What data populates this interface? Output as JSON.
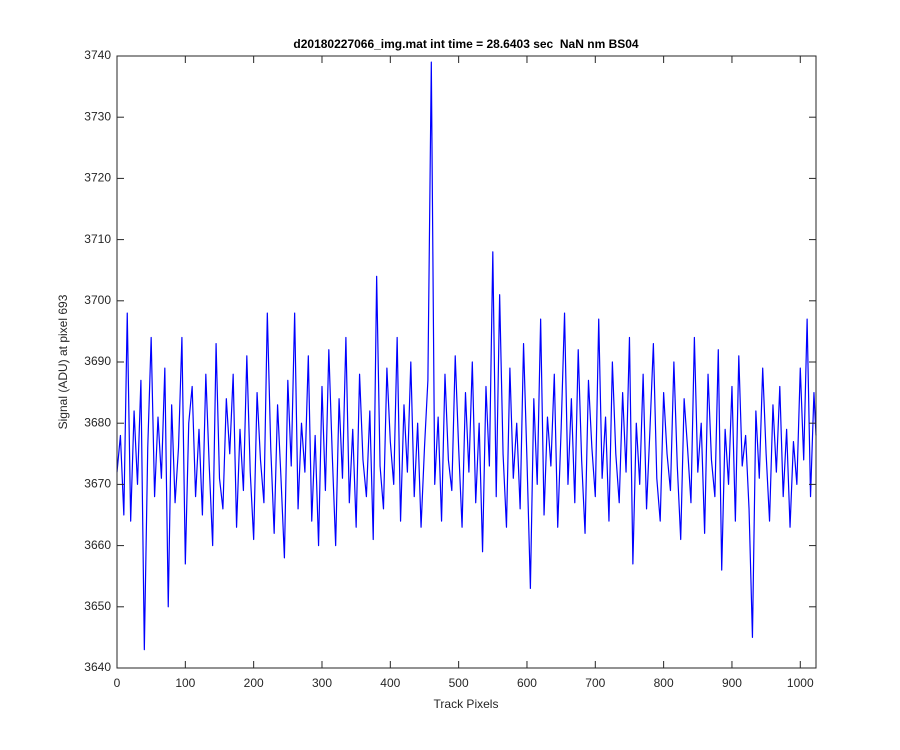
{
  "chart_data": {
    "type": "line",
    "title": "d20180227066_img.mat int time = 28.6403 sec  NaN nm BS04",
    "x_label": "Track Pixels",
    "y_label": "Signal (ADU) at pixel 693",
    "color": "#0000ff",
    "xlim": [
      0,
      1023
    ],
    "ylim": [
      3640,
      3740
    ],
    "xticks": [
      0,
      100,
      200,
      300,
      400,
      500,
      600,
      700,
      800,
      900,
      1000
    ],
    "yticks": [
      3640,
      3650,
      3660,
      3670,
      3680,
      3690,
      3700,
      3710,
      3720,
      3730,
      3740
    ],
    "grid": false,
    "x": [
      0,
      5,
      10,
      15,
      20,
      25,
      30,
      35,
      40,
      45,
      50,
      55,
      60,
      65,
      70,
      75,
      80,
      85,
      90,
      95,
      100,
      105,
      110,
      115,
      120,
      125,
      130,
      135,
      140,
      145,
      150,
      155,
      160,
      165,
      170,
      175,
      180,
      185,
      190,
      195,
      200,
      205,
      210,
      215,
      220,
      225,
      230,
      235,
      240,
      245,
      250,
      255,
      260,
      265,
      270,
      275,
      280,
      285,
      290,
      295,
      300,
      305,
      310,
      315,
      320,
      325,
      330,
      335,
      340,
      345,
      350,
      355,
      360,
      365,
      370,
      375,
      380,
      385,
      390,
      395,
      400,
      405,
      410,
      415,
      420,
      425,
      430,
      435,
      440,
      445,
      450,
      455,
      460,
      465,
      470,
      475,
      480,
      485,
      490,
      495,
      500,
      505,
      510,
      515,
      520,
      525,
      530,
      535,
      540,
      545,
      550,
      555,
      560,
      565,
      570,
      575,
      580,
      585,
      590,
      595,
      600,
      605,
      610,
      615,
      620,
      625,
      630,
      635,
      640,
      645,
      650,
      655,
      660,
      665,
      670,
      675,
      680,
      685,
      690,
      695,
      700,
      705,
      710,
      715,
      720,
      725,
      730,
      735,
      740,
      745,
      750,
      755,
      760,
      765,
      770,
      775,
      780,
      785,
      790,
      795,
      800,
      805,
      810,
      815,
      820,
      825,
      830,
      835,
      840,
      845,
      850,
      855,
      860,
      865,
      870,
      875,
      880,
      885,
      890,
      895,
      900,
      905,
      910,
      915,
      920,
      925,
      930,
      935,
      940,
      945,
      950,
      955,
      960,
      965,
      970,
      975,
      980,
      985,
      990,
      995,
      1000,
      1005,
      1010,
      1015,
      1020,
      1023
    ],
    "values": [
      3672,
      3678,
      3665,
      3698,
      3664,
      3682,
      3670,
      3687,
      3643,
      3676,
      3694,
      3668,
      3681,
      3671,
      3689,
      3650,
      3683,
      3667,
      3676,
      3694,
      3657,
      3680,
      3686,
      3668,
      3679,
      3665,
      3688,
      3673,
      3660,
      3693,
      3671,
      3666,
      3684,
      3675,
      3688,
      3663,
      3679,
      3669,
      3691,
      3672,
      3661,
      3685,
      3674,
      3667,
      3698,
      3676,
      3662,
      3683,
      3671,
      3658,
      3687,
      3673,
      3698,
      3666,
      3680,
      3672,
      3691,
      3664,
      3678,
      3660,
      3686,
      3669,
      3692,
      3675,
      3660,
      3684,
      3671,
      3694,
      3667,
      3679,
      3663,
      3688,
      3674,
      3668,
      3682,
      3661,
      3704,
      3673,
      3666,
      3689,
      3677,
      3670,
      3694,
      3664,
      3683,
      3672,
      3690,
      3668,
      3680,
      3663,
      3676,
      3687,
      3739,
      3670,
      3681,
      3664,
      3688,
      3674,
      3669,
      3691,
      3676,
      3663,
      3685,
      3672,
      3690,
      3667,
      3680,
      3659,
      3686,
      3673,
      3708,
      3668,
      3701,
      3675,
      3663,
      3689,
      3671,
      3680,
      3666,
      3693,
      3674,
      3653,
      3684,
      3670,
      3697,
      3665,
      3681,
      3673,
      3688,
      3663,
      3679,
      3698,
      3670,
      3684,
      3667,
      3692,
      3674,
      3662,
      3687,
      3676,
      3668,
      3697,
      3671,
      3681,
      3664,
      3690,
      3675,
      3667,
      3685,
      3672,
      3694,
      3657,
      3680,
      3670,
      3688,
      3666,
      3679,
      3693,
      3671,
      3664,
      3685,
      3675,
      3669,
      3690,
      3673,
      3661,
      3684,
      3676,
      3667,
      3694,
      3672,
      3680,
      3662,
      3688,
      3674,
      3668,
      3692,
      3656,
      3679,
      3670,
      3686,
      3664,
      3691,
      3673,
      3678,
      3666,
      3645,
      3682,
      3671,
      3689,
      3675,
      3664,
      3683,
      3672,
      3686,
      3668,
      3679,
      3663,
      3677,
      3670,
      3689,
      3674,
      3697,
      3668,
      3685,
      3678
    ]
  }
}
